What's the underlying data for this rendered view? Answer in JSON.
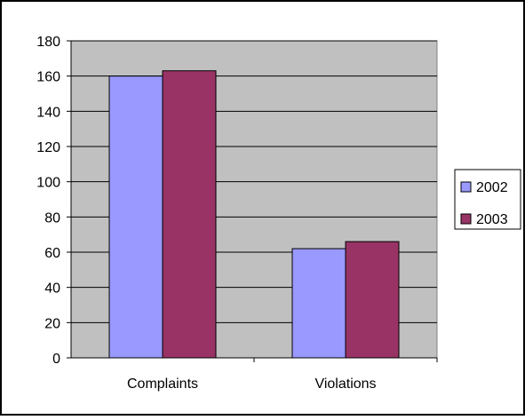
{
  "chart_data": {
    "type": "bar",
    "categories": [
      "Complaints",
      "Violations"
    ],
    "series": [
      {
        "name": "2002",
        "values": [
          160,
          62
        ],
        "color": "#9999ff"
      },
      {
        "name": "2003",
        "values": [
          163,
          66
        ],
        "color": "#993366"
      }
    ],
    "ylim": [
      0,
      180
    ],
    "yticks": [
      0,
      20,
      40,
      60,
      80,
      100,
      120,
      140,
      160,
      180
    ],
    "grid": true,
    "legend": "right",
    "plot_background": "#c0c0c0"
  }
}
